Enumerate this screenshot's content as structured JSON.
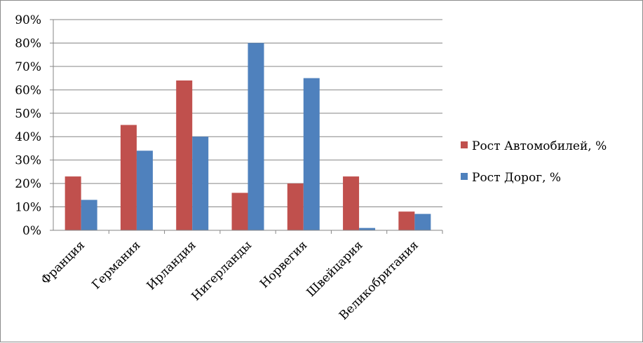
{
  "chart_data": {
    "type": "bar",
    "categories": [
      "Франция",
      "Германия",
      "Ирландия",
      "Нигерланды",
      "Норвегия",
      "Швейцария",
      "Великобритания"
    ],
    "series": [
      {
        "name": "Рост Автомобилей, %",
        "color": "#c0504d",
        "values": [
          23,
          45,
          64,
          16,
          20,
          23,
          8
        ]
      },
      {
        "name": "Рост Дорог, %",
        "color": "#4f81bd",
        "values": [
          13,
          34,
          40,
          80,
          65,
          1,
          7
        ]
      }
    ],
    "ylim": [
      0,
      90
    ],
    "y_ticks": [
      "0%",
      "10%",
      "20%",
      "30%",
      "40%",
      "50%",
      "60%",
      "70%",
      "80%",
      "90%"
    ],
    "grid": true,
    "legend": "right",
    "title": "",
    "xlabel": "",
    "ylabel": ""
  }
}
